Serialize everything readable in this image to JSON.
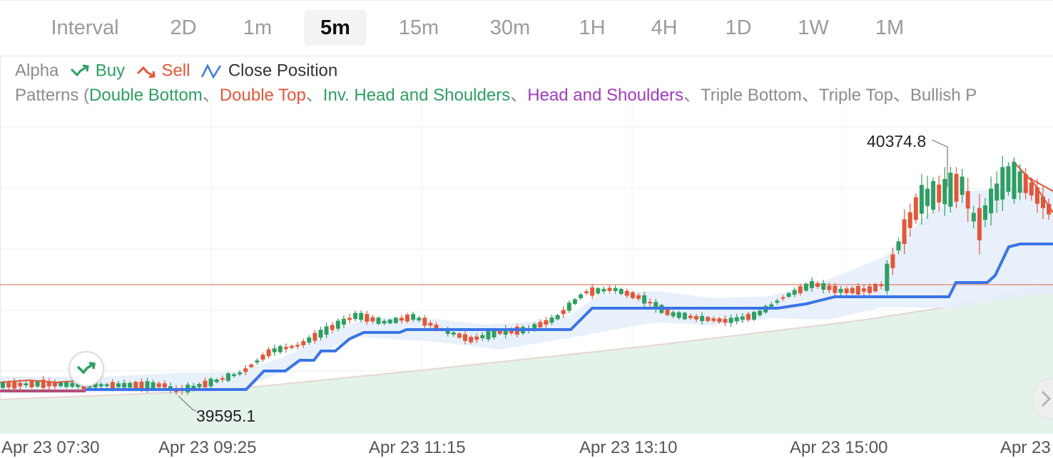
{
  "tabs": {
    "label": "Interval",
    "items": [
      "2D",
      "1m",
      "5m",
      "15m",
      "30m",
      "1H",
      "4H",
      "1D",
      "1W",
      "1M"
    ],
    "active": "5m"
  },
  "legend": {
    "indicator": "Alpha",
    "buy": "Buy",
    "sell": "Sell",
    "close_position": "Close Position",
    "patterns_prefix": "Patterns (",
    "patterns": [
      {
        "name": "Double Bottom",
        "color": "#2e9e63"
      },
      {
        "name": "Double Top",
        "color": "#e2573a"
      },
      {
        "name": "Inv. Head and Shoulders",
        "color": "#2e9e63"
      },
      {
        "name": "Head and Shoulders",
        "color": "#a13cbf"
      },
      {
        "name": "Triple Bottom",
        "color": "#8c8c8c"
      },
      {
        "name": "Triple Top",
        "color": "#8c8c8c"
      },
      {
        "name": "Bullish P",
        "color": "#8c8c8c"
      }
    ],
    "separator": "、"
  },
  "chart": {
    "high_label": "40374.8",
    "low_label": "39595.1",
    "x_labels": [
      "Apr 23 07:30",
      "Apr 23 09:25",
      "Apr 23 11:15",
      "Apr 23 13:10",
      "Apr 23 15:00",
      "Apr 23"
    ],
    "colors": {
      "up": "#2e9e63",
      "down": "#e2573a",
      "trail_line": "#3b74e6",
      "band_fill": "#e6eefb",
      "area_fill": "#e4f3ea",
      "price_line": "#d9664a"
    }
  }
}
